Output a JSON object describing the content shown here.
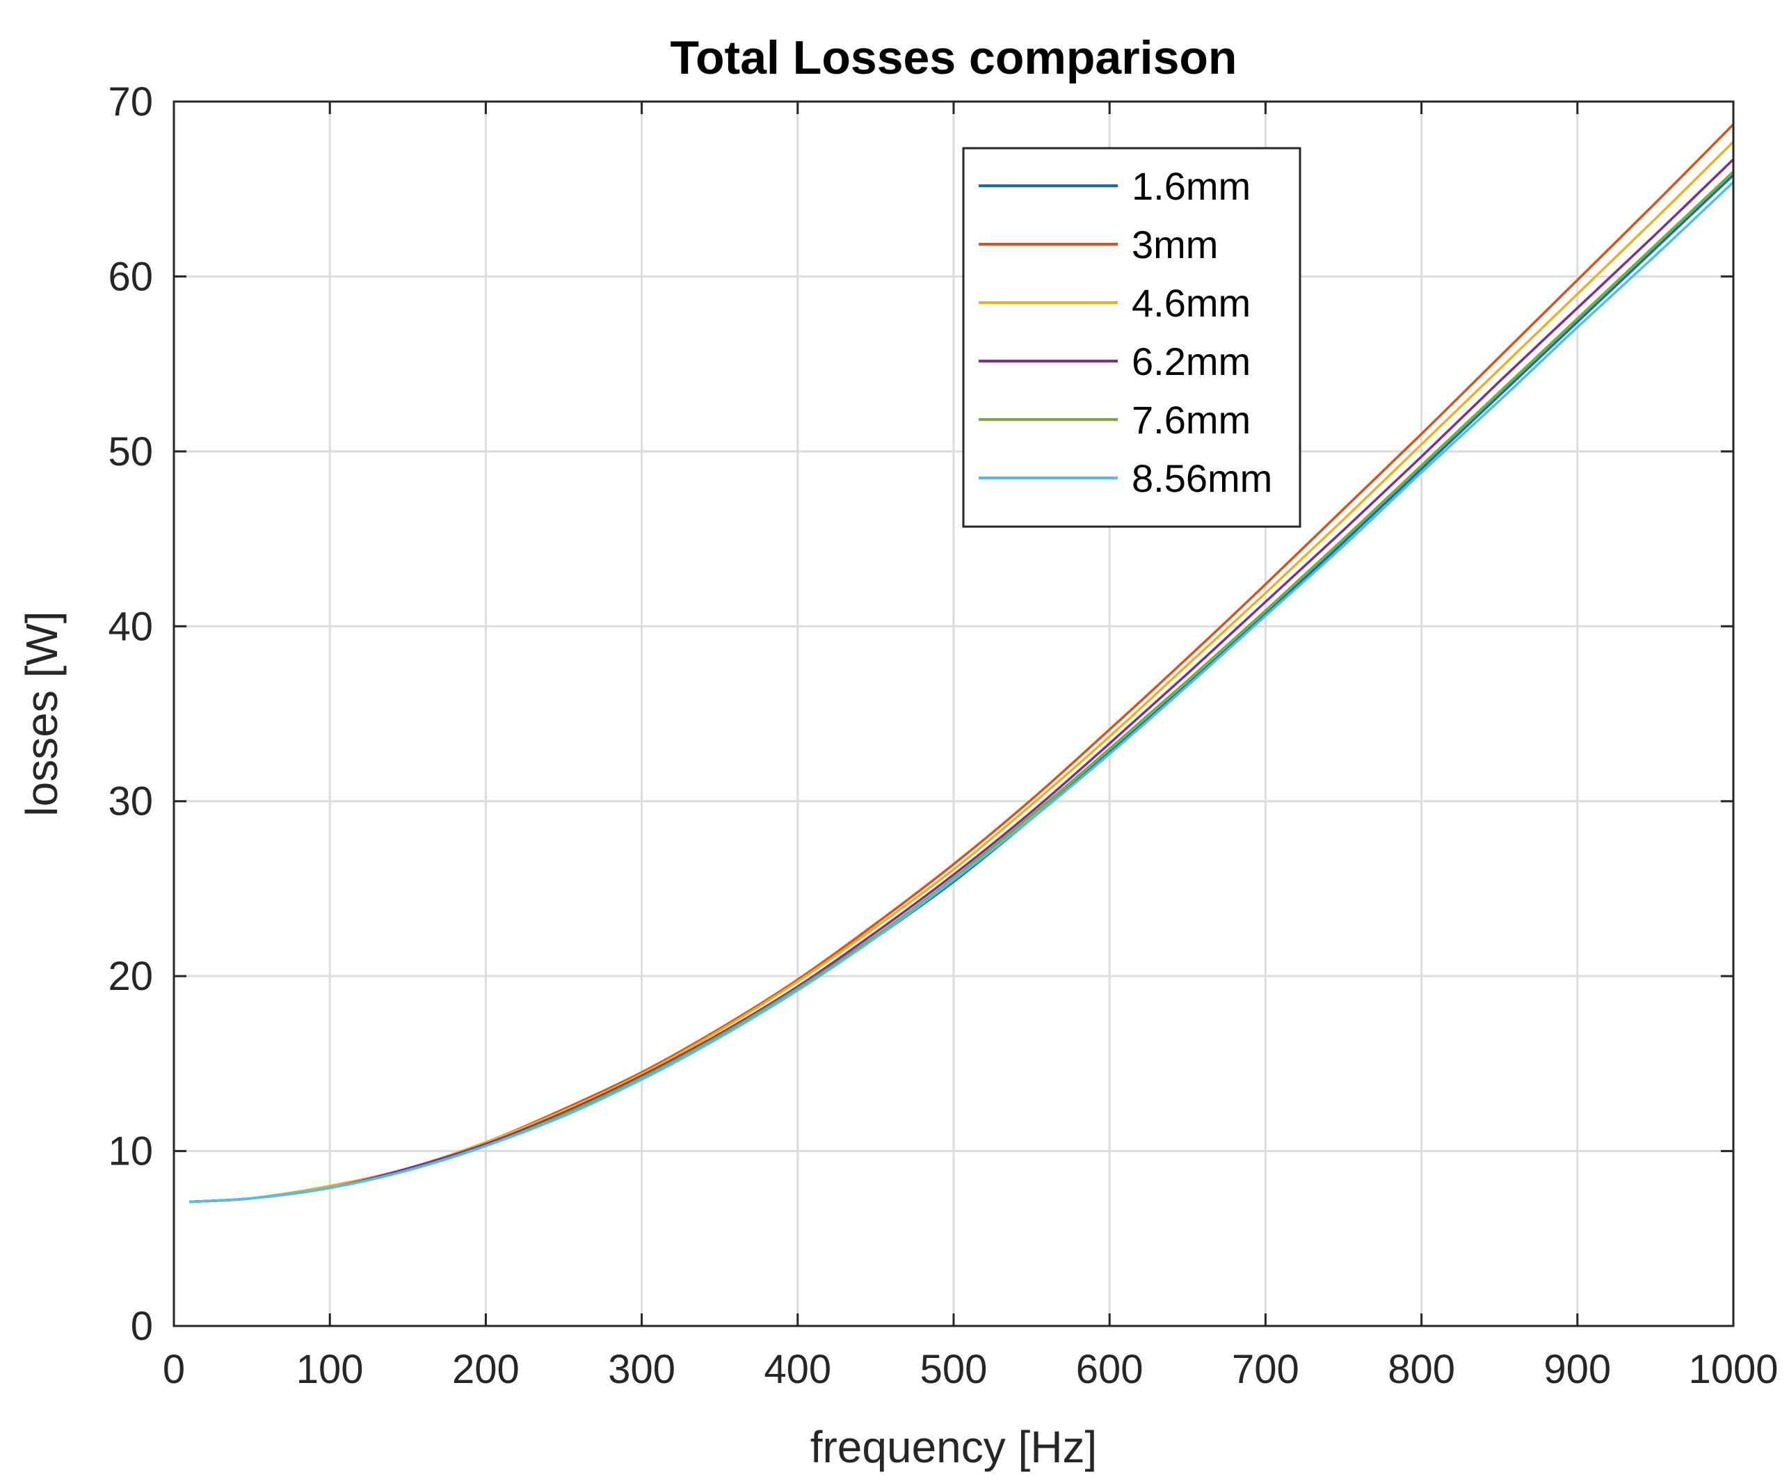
{
  "chart_data": {
    "type": "line",
    "title": "Total Losses comparison",
    "xlabel": "frequency [Hz]",
    "ylabel": "losses [W]",
    "xlim": [
      0,
      1000
    ],
    "ylim": [
      0,
      70
    ],
    "xticks": [
      0,
      100,
      200,
      300,
      400,
      500,
      600,
      700,
      800,
      900,
      1000
    ],
    "yticks": [
      0,
      10,
      20,
      30,
      40,
      50,
      60,
      70
    ],
    "grid": true,
    "legend_position": "top-right",
    "x": [
      10,
      50,
      100,
      150,
      200,
      250,
      300,
      350,
      400,
      450,
      500,
      550,
      600,
      650,
      700,
      750,
      800,
      850,
      900,
      950,
      1000
    ],
    "series": [
      {
        "name": "1.6mm",
        "color": "#0072BD",
        "values": [
          7.1,
          7.3,
          7.9,
          8.9,
          10.3,
          12.1,
          14.1,
          16.5,
          19.2,
          22.2,
          25.4,
          29.0,
          32.8,
          36.7,
          40.7,
          44.8,
          49.0,
          53.2,
          57.4,
          61.6,
          65.8
        ]
      },
      {
        "name": "3mm",
        "color": "#D95319",
        "values": [
          7.1,
          7.3,
          8.0,
          9.0,
          10.5,
          12.4,
          14.5,
          17.0,
          19.8,
          23.0,
          26.4,
          30.1,
          34.1,
          38.2,
          42.4,
          46.7,
          51.0,
          55.4,
          59.8,
          64.2,
          68.7
        ]
      },
      {
        "name": "4.6mm",
        "color": "#EDB120",
        "values": [
          7.1,
          7.3,
          8.0,
          9.0,
          10.5,
          12.3,
          14.4,
          16.9,
          19.7,
          22.8,
          26.1,
          29.8,
          33.7,
          37.8,
          41.9,
          46.1,
          50.4,
          54.7,
          59.0,
          63.3,
          67.7
        ]
      },
      {
        "name": "6.2mm",
        "color": "#7E2F8E",
        "values": [
          7.1,
          7.3,
          7.9,
          9.0,
          10.4,
          12.2,
          14.3,
          16.7,
          19.4,
          22.5,
          25.8,
          29.4,
          33.3,
          37.3,
          41.4,
          45.5,
          49.7,
          54.0,
          58.2,
          62.4,
          66.7
        ]
      },
      {
        "name": "7.6mm",
        "color": "#77AC30",
        "values": [
          7.1,
          7.3,
          7.9,
          8.9,
          10.3,
          12.1,
          14.2,
          16.6,
          19.3,
          22.3,
          25.6,
          29.2,
          33.0,
          36.9,
          40.9,
          45.0,
          49.2,
          53.4,
          57.6,
          61.8,
          66.0
        ]
      },
      {
        "name": "8.56mm",
        "color": "#4DBEEE",
        "values": [
          7.1,
          7.3,
          7.9,
          8.9,
          10.3,
          12.0,
          14.1,
          16.5,
          19.2,
          22.2,
          25.5,
          29.0,
          32.7,
          36.6,
          40.6,
          44.6,
          48.8,
          52.9,
          57.1,
          61.2,
          65.4
        ]
      }
    ]
  }
}
